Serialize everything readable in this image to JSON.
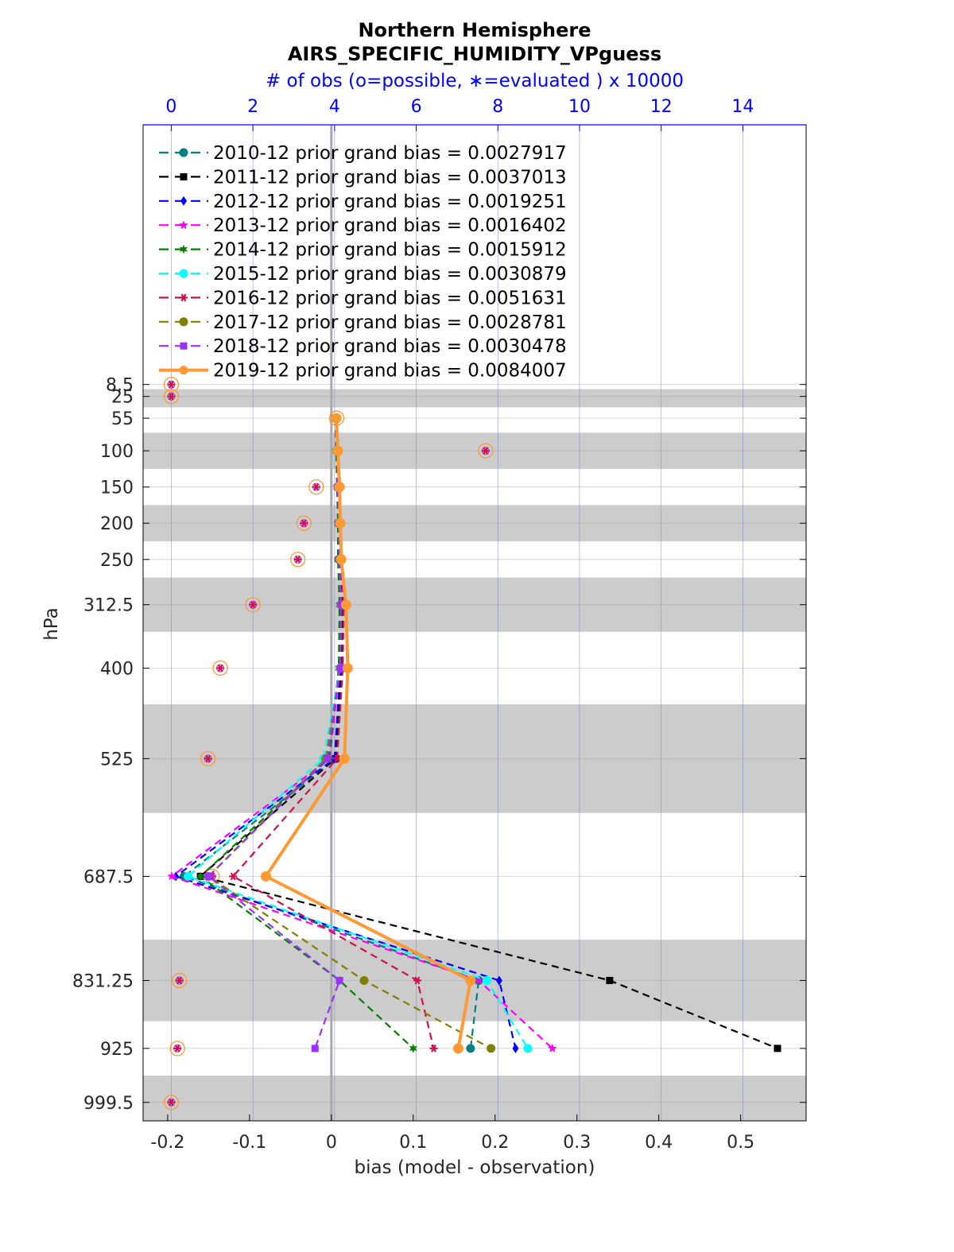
{
  "chart_data": {
    "type": "line",
    "title": "Northern Hemisphere",
    "subtitle": "AIRS_SPECIFIC_HUMIDITY_VPguess",
    "top_axis_label": "# of obs (o=possible, ∗=evaluated ) x 10000",
    "xlabel": "bias (model - observation)",
    "ylabel": "hPa",
    "xlim": [
      -0.23,
      0.58
    ],
    "top_xlim": [
      -0.69,
      15.55
    ],
    "x_ticks": [
      "-0.2",
      "-0.1",
      "0",
      "0.1",
      "0.2",
      "0.3",
      "0.4",
      "0.5"
    ],
    "x_tick_values": [
      -0.2,
      -0.1,
      0,
      0.1,
      0.2,
      0.3,
      0.4,
      0.5
    ],
    "top_x_ticks": [
      "0",
      "2",
      "4",
      "6",
      "8",
      "10",
      "12",
      "14"
    ],
    "top_x_tick_values": [
      0,
      2,
      4,
      6,
      8,
      10,
      12,
      14
    ],
    "y_ticks": [
      "8.5",
      "25",
      "55",
      "100",
      "150",
      "200",
      "250",
      "312.5",
      "400",
      "525",
      "687.5",
      "831.25",
      "925",
      "999.5"
    ],
    "y_tick_values": [
      8.5,
      25,
      55,
      100,
      150,
      200,
      250,
      312.5,
      400,
      525,
      687.5,
      831.25,
      925,
      999.5
    ],
    "ylim": [
      -350,
      1025
    ],
    "y_reversed": true,
    "shaded_bands_hpa": [
      [
        15,
        40
      ],
      [
        75,
        125
      ],
      [
        175,
        225
      ],
      [
        275,
        350
      ],
      [
        450,
        600
      ],
      [
        775,
        887.5
      ],
      [
        962.5,
        1025
      ]
    ],
    "grid": true,
    "legend_placement": "top-left",
    "levels_hpa": [
      55,
      100,
      150,
      200,
      250,
      312.5,
      400,
      525,
      687.5,
      831.25,
      925
    ],
    "series": [
      {
        "name": "2010-12 prior grand bias = 0.0027917",
        "color": "#008080",
        "marker": "circle",
        "line": "dashed",
        "values": [
          0.005,
          0.007,
          0.008,
          0.009,
          0.009,
          0.012,
          0.013,
          0.006,
          -0.18,
          0.18,
          0.17
        ]
      },
      {
        "name": "2011-12 prior grand bias = 0.0037013",
        "color": "#000000",
        "marker": "square",
        "line": "dashed",
        "values": [
          0.005,
          0.007,
          0.008,
          0.009,
          0.01,
          0.013,
          0.012,
          0.005,
          -0.16,
          0.34,
          0.545
        ]
      },
      {
        "name": "2012-12 prior grand bias = 0.0019251",
        "color": "#0000ff",
        "marker": "diamond",
        "line": "dashed",
        "values": [
          0.005,
          0.006,
          0.008,
          0.008,
          0.009,
          0.011,
          0.011,
          0.004,
          -0.19,
          0.205,
          0.225
        ]
      },
      {
        "name": "2013-12 prior grand bias = 0.0016402",
        "color": "#ff00ff",
        "marker": "star",
        "line": "dashed",
        "values": [
          0.005,
          0.006,
          0.007,
          0.008,
          0.009,
          0.011,
          0.01,
          -0.002,
          -0.195,
          0.18,
          0.27
        ]
      },
      {
        "name": "2014-12 prior grand bias = 0.0015912",
        "color": "#008000",
        "marker": "hexagram",
        "line": "dashed",
        "values": [
          0.005,
          0.006,
          0.007,
          0.008,
          0.008,
          0.01,
          0.009,
          -0.003,
          -0.16,
          0.01,
          0.1
        ]
      },
      {
        "name": "2015-12 prior grand bias = 0.0030879",
        "color": "#00ffff",
        "marker": "circle",
        "line": "dashed",
        "values": [
          0.005,
          0.007,
          0.008,
          0.009,
          0.01,
          0.012,
          0.011,
          -0.01,
          -0.175,
          0.19,
          0.24
        ]
      },
      {
        "name": "2016-12 prior grand bias = 0.0051631",
        "color": "#d0104c",
        "marker": "asterisk",
        "line": "dashed",
        "values": [
          0.006,
          0.008,
          0.01,
          0.011,
          0.012,
          0.015,
          0.014,
          0.007,
          -0.12,
          0.105,
          0.125
        ]
      },
      {
        "name": "2017-12 prior grand bias = 0.0028781",
        "color": "#808000",
        "marker": "circle",
        "line": "dashed",
        "values": [
          0.005,
          0.007,
          0.008,
          0.009,
          0.01,
          0.012,
          0.011,
          -0.007,
          -0.15,
          0.04,
          0.195
        ]
      },
      {
        "name": "2018-12 prior grand bias = 0.0030478",
        "color": "#9b30ff",
        "marker": "square",
        "line": "dashed",
        "values": [
          0.005,
          0.007,
          0.008,
          0.009,
          0.01,
          0.012,
          0.011,
          -0.005,
          -0.15,
          0.01,
          -0.02
        ]
      },
      {
        "name": "2019-12 prior grand bias = 0.0084007",
        "color": "#ff9933",
        "marker": "circle",
        "line": "solid",
        "values": [
          0.006,
          0.008,
          0.01,
          0.011,
          0.012,
          0.018,
          0.02,
          0.016,
          -0.08,
          0.17,
          0.155
        ]
      }
    ],
    "obs_counts": {
      "levels_hpa": [
        8.5,
        25,
        55,
        100,
        150,
        200,
        250,
        312.5,
        400,
        525,
        687.5,
        831.25,
        925,
        999.5
      ],
      "possible_x10000": [
        0,
        0,
        4.05,
        7.7,
        3.55,
        3.25,
        3.1,
        2.0,
        1.2,
        0.9,
        1.0,
        0.2,
        0.15,
        0
      ],
      "evaluated_x10000": [
        0,
        0,
        4.05,
        7.7,
        3.55,
        3.25,
        3.1,
        2.0,
        1.2,
        0.9,
        1.0,
        0.2,
        0.15,
        0
      ]
    }
  }
}
